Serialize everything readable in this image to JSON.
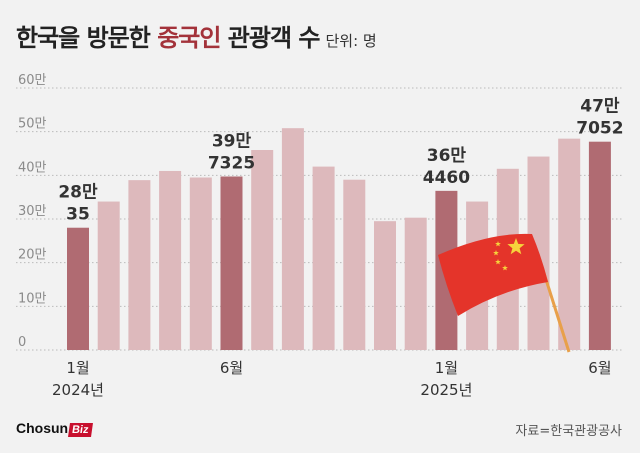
{
  "title": {
    "part1": "한국을 방문한 ",
    "accent": "중국인",
    "part2": " 관광객 수",
    "unit": "단위: 명"
  },
  "source": "자료=한국관광공사",
  "logo": {
    "main": "Chosun",
    "biz": "Biz"
  },
  "colors": {
    "highlight": "#b06b72",
    "normal": "#ddb9bc",
    "grid": "#bbbbbb",
    "accent": "#a3323a"
  },
  "chart_data": {
    "type": "bar",
    "categories": [
      "2024-01",
      "2024-02",
      "2024-03",
      "2024-04",
      "2024-05",
      "2024-06",
      "2024-07",
      "2024-08",
      "2024-09",
      "2024-10",
      "2024-11",
      "2024-12",
      "2025-01",
      "2025-02",
      "2025-03",
      "2025-04",
      "2025-05",
      "2025-06"
    ],
    "values": [
      280035,
      340000,
      389000,
      410000,
      395000,
      397325,
      458000,
      508000,
      420000,
      390000,
      295000,
      303000,
      364460,
      340000,
      415000,
      443000,
      484000,
      477052
    ],
    "highlighted": [
      0,
      5,
      12,
      17
    ],
    "value_labels": [
      {
        "index": 0,
        "line1": "28만",
        "line2": "35"
      },
      {
        "index": 5,
        "line1": "39만",
        "line2": "7325"
      },
      {
        "index": 12,
        "line1": "36만",
        "line2": "4460"
      },
      {
        "index": 17,
        "line1": "47만",
        "line2": "7052"
      }
    ],
    "ylim": [
      0,
      600000
    ],
    "yticks": [
      {
        "value": 0,
        "label": "0"
      },
      {
        "value": 100000,
        "label": "10만"
      },
      {
        "value": 200000,
        "label": "20만"
      },
      {
        "value": 300000,
        "label": "30만"
      },
      {
        "value": 400000,
        "label": "40만"
      },
      {
        "value": 500000,
        "label": "50만"
      },
      {
        "value": 600000,
        "label": "60만"
      }
    ],
    "xticks": [
      {
        "index": 0,
        "line1": "1월",
        "line2": "2024년"
      },
      {
        "index": 5,
        "line1": "6월",
        "line2": ""
      },
      {
        "index": 12,
        "line1": "1월",
        "line2": "2025년"
      },
      {
        "index": 17,
        "line1": "6월",
        "line2": ""
      }
    ],
    "grid": true,
    "xlabel": "",
    "ylabel": ""
  }
}
